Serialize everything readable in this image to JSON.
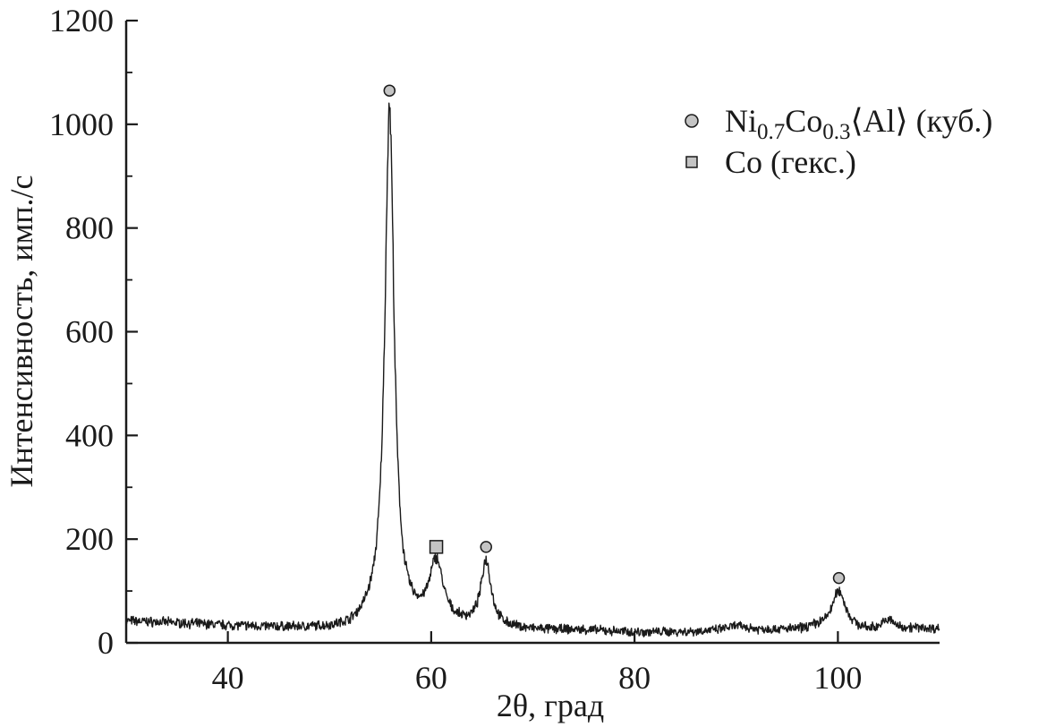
{
  "chart_data": {
    "type": "line",
    "xlabel": "2θ, град",
    "ylabel": "Интенсивность, имп./с",
    "xlim": [
      30,
      110
    ],
    "ylim": [
      0,
      1200
    ],
    "x_ticks": [
      40,
      60,
      80,
      100
    ],
    "y_ticks": [
      0,
      200,
      400,
      600,
      800,
      1000,
      1200
    ],
    "grid": false,
    "legend_position": "top-right",
    "line_color": "#1a1a1a",
    "baseline": [
      [
        30,
        42
      ],
      [
        35,
        38
      ],
      [
        40,
        33
      ],
      [
        45,
        29
      ],
      [
        50,
        26
      ],
      [
        52,
        27
      ],
      [
        53,
        33
      ],
      [
        54,
        40
      ],
      [
        70,
        24
      ],
      [
        75,
        24
      ],
      [
        80,
        20
      ],
      [
        85,
        21
      ],
      [
        88,
        24
      ],
      [
        90,
        32
      ],
      [
        92,
        26
      ],
      [
        96,
        25
      ],
      [
        98,
        30
      ],
      [
        103,
        24
      ],
      [
        104,
        30
      ],
      [
        105,
        44
      ],
      [
        106,
        30
      ],
      [
        110,
        27
      ]
    ],
    "peaks": [
      {
        "x": 55.9,
        "y": 1030,
        "width": 0.55,
        "marker": "circle"
      },
      {
        "x": 60.5,
        "y": 150,
        "width": 0.8,
        "marker": "square"
      },
      {
        "x": 65.4,
        "y": 155,
        "width": 0.6,
        "marker": "circle"
      },
      {
        "x": 100.1,
        "y": 100,
        "width": 0.8,
        "marker": "circle"
      }
    ],
    "marker_y": {
      "circle": [
        1065,
        185,
        125
      ],
      "square": 185
    },
    "legend": {
      "entries": [
        {
          "marker": "circle",
          "parts": [
            "Ni",
            "0.7",
            "Co",
            "0.3",
            "⟨Al⟩ (куб.)"
          ]
        },
        {
          "marker": "square",
          "parts": [
            "Co (гекс.)"
          ]
        }
      ]
    },
    "marker_fill": "#c4c4c4"
  }
}
